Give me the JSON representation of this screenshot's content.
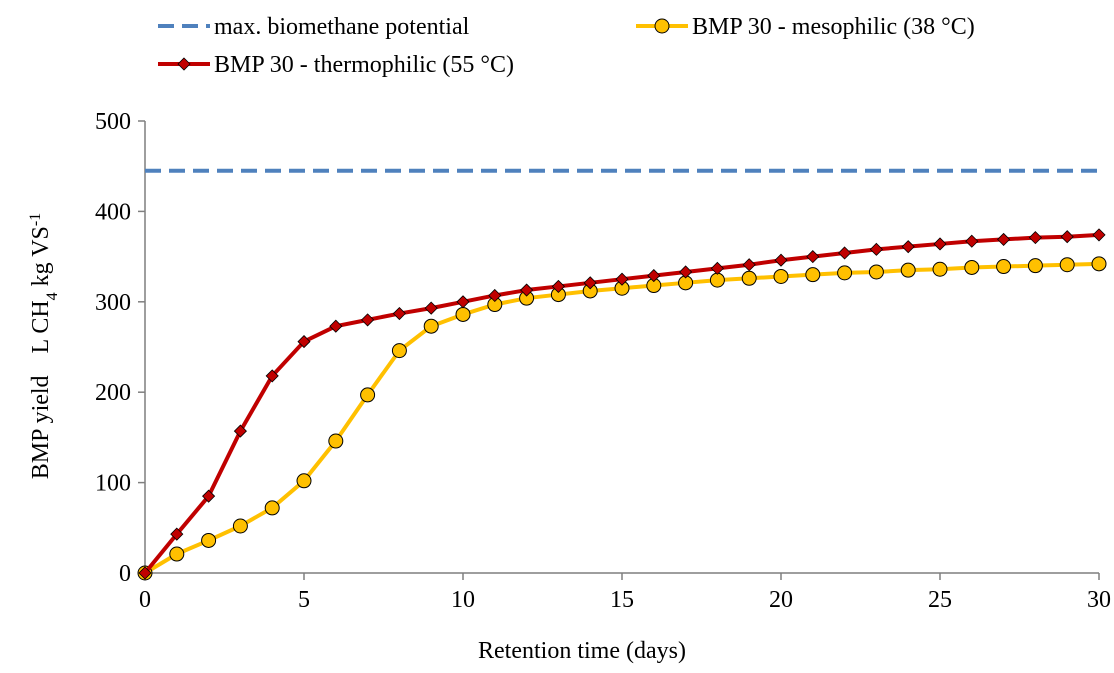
{
  "chart_data": {
    "type": "line",
    "xlabel": "Retention time (days)",
    "ylabel_parts": {
      "a": "BMP yield",
      "b": "L CH",
      "sub": "4",
      "c": " kg VS",
      "sup": "-1"
    },
    "xlim": [
      0,
      30
    ],
    "ylim": [
      0,
      500
    ],
    "x_ticks": [
      0,
      5,
      10,
      15,
      20,
      25,
      30
    ],
    "y_ticks": [
      0,
      100,
      200,
      300,
      400,
      500
    ],
    "grid": false,
    "legend_position": "top",
    "x": [
      0,
      1,
      2,
      3,
      4,
      5,
      6,
      7,
      8,
      9,
      10,
      11,
      12,
      13,
      14,
      15,
      16,
      17,
      18,
      19,
      20,
      21,
      22,
      23,
      24,
      25,
      26,
      27,
      28,
      29,
      30
    ],
    "series": [
      {
        "name": "max. biomethane potential",
        "style": "dashed",
        "color": "#4f81bd",
        "values": [
          445,
          445,
          445,
          445,
          445,
          445,
          445,
          445,
          445,
          445,
          445,
          445,
          445,
          445,
          445,
          445,
          445,
          445,
          445,
          445,
          445,
          445,
          445,
          445,
          445,
          445,
          445,
          445,
          445,
          445,
          445
        ]
      },
      {
        "name": "BMP 30 - mesophilic (38 °C)",
        "style": "circle-marker",
        "color": "#ffc000",
        "values": [
          0,
          21,
          36,
          52,
          72,
          102,
          146,
          197,
          246,
          273,
          286,
          297,
          304,
          308,
          312,
          315,
          318,
          321,
          324,
          326,
          328,
          330,
          332,
          333,
          335,
          336,
          338,
          339,
          340,
          341,
          342
        ]
      },
      {
        "name": "BMP 30 - thermophilic (55 °C)",
        "style": "diamond-marker",
        "color": "#c00000",
        "values": [
          0,
          43,
          85,
          157,
          218,
          256,
          273,
          280,
          287,
          293,
          300,
          307,
          313,
          317,
          321,
          325,
          329,
          333,
          337,
          341,
          346,
          350,
          354,
          358,
          361,
          364,
          367,
          369,
          371,
          372,
          374
        ]
      }
    ]
  }
}
